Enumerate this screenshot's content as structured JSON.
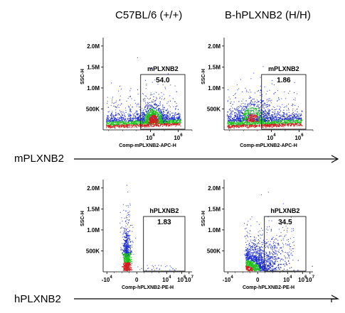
{
  "column_titles": [
    "C57BL/6 (+/+)",
    "B-hPLXNB2 (H/H)"
  ],
  "row_labels": [
    "mPLXNB2",
    "hPLXNB2"
  ],
  "colors": {
    "dots_dense": "#d02020",
    "dots_mid": "#20c020",
    "dots_sparse": "#2030d0",
    "axis": "#000000"
  },
  "chart_data": [
    {
      "type": "scatter",
      "row": 0,
      "col": 0,
      "xlabel": "Comp-mPLXNB2-APC-H",
      "ylabel": "SSC-H",
      "x_ticks": [
        {
          "e": 4,
          "text": "10"
        },
        {
          "e": 6,
          "text": "10"
        }
      ],
      "x_range_log": [
        0.6,
        7
      ],
      "y_ticks": [
        "500K",
        "1.0M",
        "1.5M",
        "2.0M"
      ],
      "ylim": [
        0,
        2200000
      ],
      "gate": {
        "label": "mPLXNB2",
        "value": "54.0",
        "x_start_log": 3.3
      }
    },
    {
      "type": "scatter",
      "row": 0,
      "col": 1,
      "xlabel": "Comp-mPLXNB2-APC-H",
      "ylabel": "SSC-H",
      "x_ticks": [
        {
          "e": 4,
          "text": "10"
        },
        {
          "e": 6,
          "text": "10"
        }
      ],
      "x_range_log": [
        0.6,
        7
      ],
      "y_ticks": [
        "500K",
        "1.0M",
        "1.5M",
        "2.0M"
      ],
      "ylim": [
        0,
        2200000
      ],
      "gate": {
        "label": "mPLXNB2",
        "value": "1.86",
        "x_start_log": 3.3
      }
    },
    {
      "type": "scatter",
      "row": 1,
      "col": 0,
      "xlabel": "Comp-hPLXNB2-PE-H",
      "ylabel": "SSC-H",
      "x_ticks": [
        {
          "e": 4,
          "pre": "-",
          "text": "10"
        },
        {
          "e": "",
          "text": "0"
        },
        {
          "e": 4,
          "text": "10"
        },
        {
          "e": 6,
          "text": "10"
        },
        {
          "e": 7,
          "text": "10"
        }
      ],
      "x_range_log": [
        -4.5,
        7.4
      ],
      "y_ticks": [
        "500K",
        "1.0M",
        "1.5M",
        "2.0M"
      ],
      "ylim": [
        0,
        2200000
      ],
      "gate": {
        "label": "hPLXNB2",
        "value": "1.83",
        "x_start_log": 0.9
      }
    },
    {
      "type": "scatter",
      "row": 1,
      "col": 1,
      "xlabel": "Comp-hPLXNB2-PE-H",
      "ylabel": "SSC-H",
      "x_ticks": [
        {
          "e": 4,
          "pre": "-",
          "text": "10"
        },
        {
          "e": "",
          "text": "0"
        },
        {
          "e": 4,
          "text": "10"
        },
        {
          "e": 6,
          "text": "10"
        },
        {
          "e": 7,
          "text": "10"
        }
      ],
      "x_range_log": [
        -4.5,
        7.4
      ],
      "y_ticks": [
        "500K",
        "1.0M",
        "1.5M",
        "2.0M"
      ],
      "ylim": [
        0,
        2200000
      ],
      "gate": {
        "label": "hPLXNB2",
        "value": "34.5",
        "x_start_log": 0.9
      }
    }
  ]
}
